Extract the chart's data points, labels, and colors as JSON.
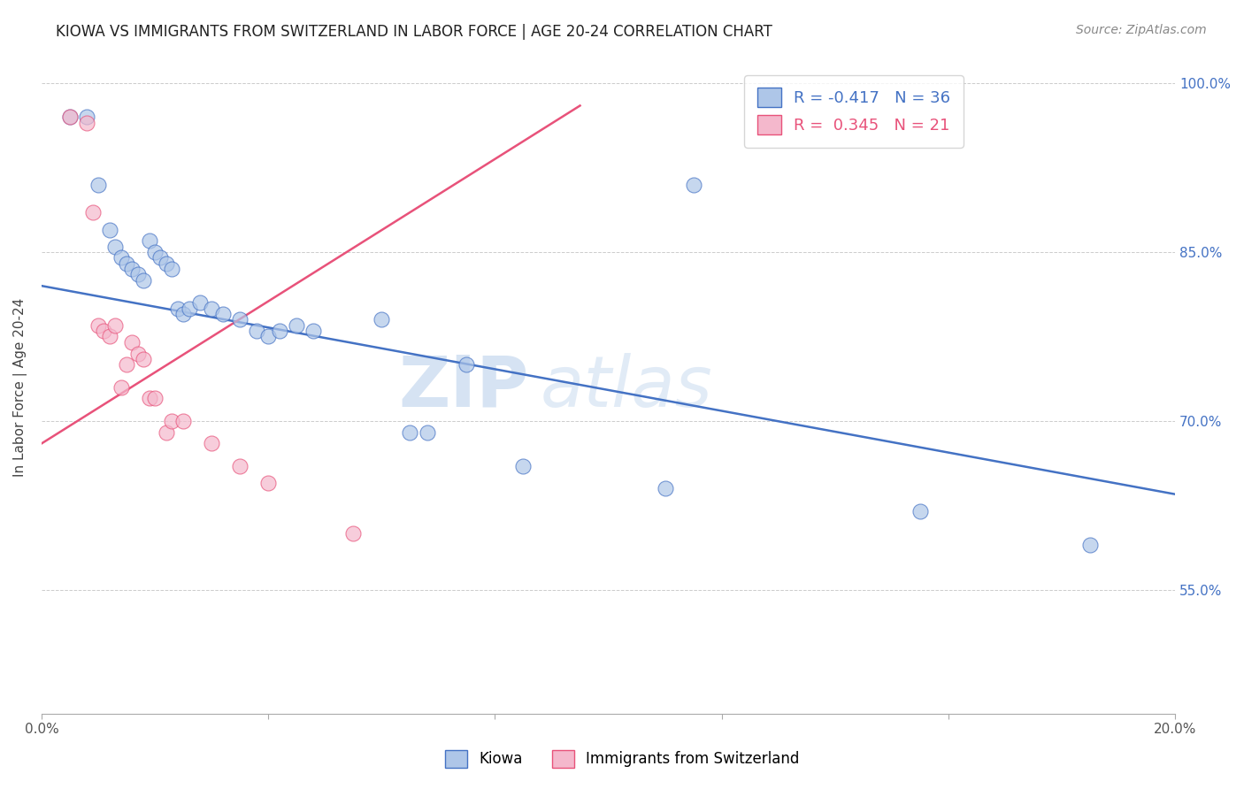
{
  "title": "KIOWA VS IMMIGRANTS FROM SWITZERLAND IN LABOR FORCE | AGE 20-24 CORRELATION CHART",
  "source": "Source: ZipAtlas.com",
  "ylabel": "In Labor Force | Age 20-24",
  "xlim": [
    0.0,
    0.2
  ],
  "ylim": [
    0.44,
    1.02
  ],
  "xticks": [
    0.0,
    0.04,
    0.08,
    0.12,
    0.16,
    0.2
  ],
  "xtick_labels": [
    "0.0%",
    "",
    "",
    "",
    "",
    "20.0%"
  ],
  "yticks": [
    0.55,
    0.7,
    0.85,
    1.0
  ],
  "ytick_labels": [
    "55.0%",
    "70.0%",
    "85.0%",
    "100.0%"
  ],
  "blue_R": -0.417,
  "blue_N": 36,
  "pink_R": 0.345,
  "pink_N": 21,
  "blue_label": "Kiowa",
  "pink_label": "Immigrants from Switzerland",
  "blue_color": "#aec6e8",
  "blue_line_color": "#4472c4",
  "pink_color": "#f4b8cc",
  "pink_line_color": "#e8527a",
  "watermark_zip": "ZIP",
  "watermark_atlas": "atlas",
  "blue_scatter_x": [
    0.005,
    0.008,
    0.01,
    0.012,
    0.013,
    0.014,
    0.015,
    0.016,
    0.017,
    0.018,
    0.019,
    0.02,
    0.021,
    0.022,
    0.023,
    0.024,
    0.025,
    0.026,
    0.028,
    0.03,
    0.032,
    0.035,
    0.038,
    0.04,
    0.042,
    0.045,
    0.048,
    0.06,
    0.065,
    0.068,
    0.075,
    0.085,
    0.11,
    0.115,
    0.155,
    0.185
  ],
  "blue_scatter_y": [
    0.97,
    0.97,
    0.91,
    0.87,
    0.855,
    0.845,
    0.84,
    0.835,
    0.83,
    0.825,
    0.86,
    0.85,
    0.845,
    0.84,
    0.835,
    0.8,
    0.795,
    0.8,
    0.805,
    0.8,
    0.795,
    0.79,
    0.78,
    0.775,
    0.78,
    0.785,
    0.78,
    0.79,
    0.69,
    0.69,
    0.75,
    0.66,
    0.64,
    0.91,
    0.62,
    0.59
  ],
  "pink_scatter_x": [
    0.005,
    0.008,
    0.009,
    0.01,
    0.011,
    0.012,
    0.013,
    0.014,
    0.015,
    0.016,
    0.017,
    0.018,
    0.019,
    0.02,
    0.022,
    0.023,
    0.025,
    0.03,
    0.035,
    0.04,
    0.055
  ],
  "pink_scatter_y": [
    0.97,
    0.965,
    0.885,
    0.785,
    0.78,
    0.775,
    0.785,
    0.73,
    0.75,
    0.77,
    0.76,
    0.755,
    0.72,
    0.72,
    0.69,
    0.7,
    0.7,
    0.68,
    0.66,
    0.645,
    0.6
  ],
  "blue_line_x": [
    0.0,
    0.2
  ],
  "blue_line_y": [
    0.82,
    0.635
  ],
  "pink_line_x": [
    0.0,
    0.095
  ],
  "pink_line_y": [
    0.68,
    0.98
  ]
}
